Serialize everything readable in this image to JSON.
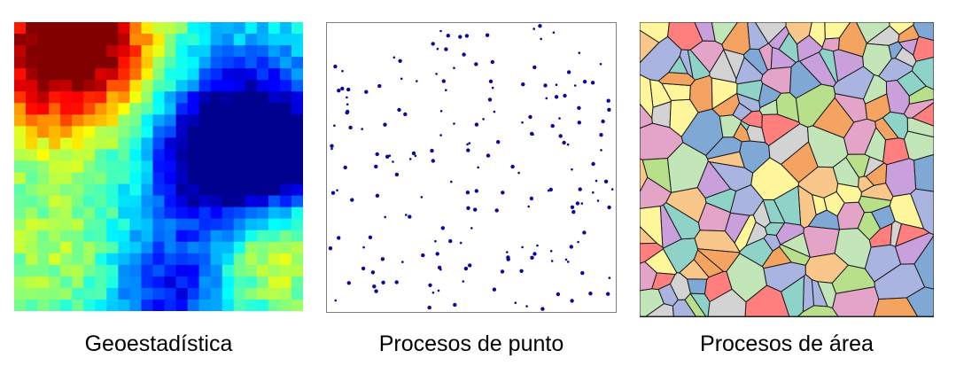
{
  "panels": [
    {
      "id": "geo",
      "caption": "Geoestadística"
    },
    {
      "id": "pts",
      "caption": "Procesos de punto"
    },
    {
      "id": "area",
      "caption": "Procesos de área"
    }
  ],
  "colors": {
    "point_color": "#0a0a9c",
    "frame_color": "#7f7f7f",
    "area_outline": "#1a1a1a",
    "area_palette": [
      "#7fa8d4",
      "#b8e08a",
      "#f4a460",
      "#c9a0dc",
      "#ff7f7f",
      "#fff59a",
      "#8fd3c8",
      "#d3d3d3",
      "#aab4e0",
      "#c3e6b8",
      "#f9c78a",
      "#e3a4c8"
    ],
    "heatmap_scale": [
      "#00008f",
      "#0000ff",
      "#0080ff",
      "#00ffff",
      "#80ff80",
      "#ffff00",
      "#ff8000",
      "#ff0000",
      "#800000"
    ]
  }
}
